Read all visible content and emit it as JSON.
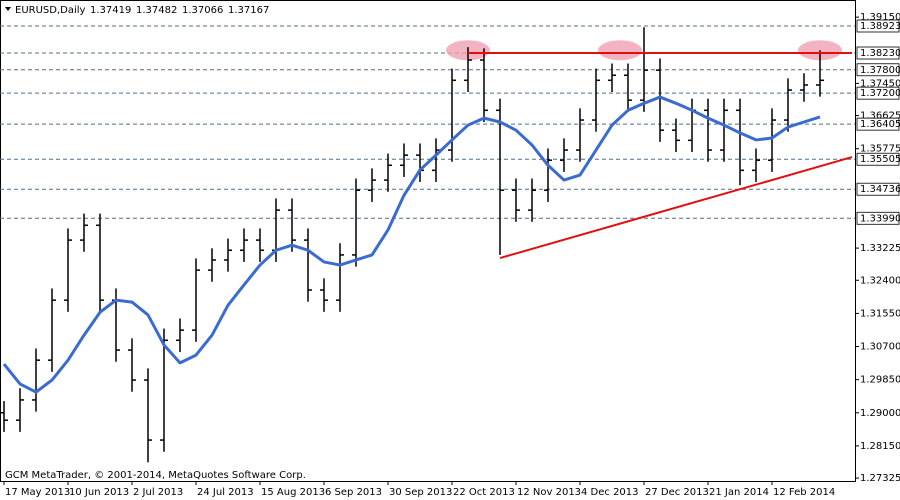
{
  "chart_data": {
    "type": "ohlc",
    "symbol": "EURUSD,Daily",
    "quote": [
      1.37419,
      1.37482,
      1.37066,
      1.37167
    ],
    "footer": "GCM MetaTrader, © 2001-2014, MetaQuotes Software Corp.",
    "categories": [
      "17 May 2013",
      null,
      null,
      null,
      "10 Jun 2013",
      null,
      null,
      null,
      "2 Jul 2013",
      null,
      null,
      null,
      "24 Jul 2013",
      null,
      null,
      null,
      "15 Aug 2013",
      null,
      null,
      null,
      "6 Sep 2013",
      null,
      null,
      null,
      "30 Sep 2013",
      null,
      null,
      null,
      "22 Oct 2013",
      null,
      null,
      null,
      "12 Nov 2013",
      null,
      null,
      null,
      "4 Dec 2013",
      null,
      null,
      null,
      "27 Dec 2013",
      null,
      null,
      null,
      "21 Jan 2014",
      null,
      null,
      null,
      "12 Feb 2014",
      null,
      null,
      null
    ],
    "open": [
      1.29,
      1.2881,
      1.2933,
      1.3035,
      1.3189,
      1.3343,
      1.3381,
      1.3189,
      1.3061,
      1.2984,
      1.283,
      1.3086,
      1.3112,
      1.3266,
      1.3292,
      1.3317,
      1.3343,
      1.3317,
      1.342,
      1.3343,
      1.3215,
      1.3189,
      1.3305,
      1.3471,
      1.3497,
      1.3535,
      1.3561,
      1.3522,
      1.3574,
      1.3753,
      1.3805,
      1.3676,
      1.3471,
      1.342,
      1.3471,
      1.3548,
      1.3574,
      1.3651,
      1.3753,
      1.3766,
      1.3702,
      1.3779,
      1.3625,
      1.3599,
      1.3676,
      1.3574,
      1.3676,
      1.3522,
      1.3548,
      1.3651,
      1.3728,
      1.3741
    ],
    "high": [
      1.293,
      1.2963,
      1.3065,
      1.3219,
      1.3373,
      1.3411,
      1.3411,
      1.3219,
      1.3091,
      1.3014,
      1.3116,
      1.3142,
      1.3296,
      1.3322,
      1.3347,
      1.3373,
      1.3373,
      1.345,
      1.345,
      1.3373,
      1.3245,
      1.3335,
      1.3501,
      1.3527,
      1.3565,
      1.3591,
      1.3591,
      1.3604,
      1.3783,
      1.3838,
      1.3835,
      1.3706,
      1.3501,
      1.3501,
      1.3578,
      1.3604,
      1.3681,
      1.3783,
      1.3796,
      1.3796,
      1.3889,
      1.3809,
      1.3655,
      1.3706,
      1.3706,
      1.3706,
      1.3706,
      1.3578,
      1.3681,
      1.3758,
      1.3771,
      1.383
    ],
    "low": [
      1.2851,
      1.2851,
      1.2903,
      1.3005,
      1.3159,
      1.3313,
      1.3159,
      1.3031,
      1.2954,
      1.2773,
      1.28,
      1.3056,
      1.3082,
      1.3236,
      1.3262,
      1.3287,
      1.3287,
      1.3287,
      1.3313,
      1.3185,
      1.3159,
      1.3159,
      1.3275,
      1.3441,
      1.3467,
      1.3505,
      1.3492,
      1.3492,
      1.3544,
      1.3723,
      1.3646,
      1.3305,
      1.339,
      1.339,
      1.3441,
      1.3518,
      1.3544,
      1.3621,
      1.3723,
      1.3672,
      1.3672,
      1.3595,
      1.3569,
      1.3569,
      1.3544,
      1.3544,
      1.3484,
      1.3492,
      1.3518,
      1.3621,
      1.3698,
      1.3711
    ],
    "close": [
      1.2881,
      1.2933,
      1.3035,
      1.3189,
      1.3343,
      1.3381,
      1.3189,
      1.3061,
      1.2984,
      1.283,
      1.3086,
      1.3112,
      1.3266,
      1.3292,
      1.3317,
      1.3343,
      1.3317,
      1.342,
      1.3343,
      1.3215,
      1.3189,
      1.3305,
      1.3471,
      1.3497,
      1.3535,
      1.3561,
      1.3522,
      1.3574,
      1.3753,
      1.3805,
      1.3676,
      1.3471,
      1.342,
      1.3471,
      1.3548,
      1.3574,
      1.3651,
      1.3753,
      1.3766,
      1.3702,
      1.3779,
      1.3625,
      1.3599,
      1.3676,
      1.3574,
      1.3676,
      1.3522,
      1.3548,
      1.3651,
      1.3728,
      1.3741,
      1.3753
    ],
    "bar_color": "#000000",
    "moving_average": {
      "color": "#3a6bd0",
      "values": [
        1.3025,
        1.2974,
        1.2953,
        1.2984,
        1.3035,
        1.3099,
        1.3158,
        1.3189,
        1.3184,
        1.3151,
        1.3074,
        1.3028,
        1.3048,
        1.3099,
        1.3176,
        1.3228,
        1.3279,
        1.3317,
        1.333,
        1.3317,
        1.3287,
        1.3279,
        1.3292,
        1.3305,
        1.3369,
        1.3458,
        1.3523,
        1.3561,
        1.36,
        1.3638,
        1.3656,
        1.3646,
        1.3625,
        1.3587,
        1.3535,
        1.3497,
        1.351,
        1.3574,
        1.3638,
        1.3676,
        1.3694,
        1.371,
        1.3694,
        1.3676,
        1.3656,
        1.3638,
        1.3618,
        1.36,
        1.3605,
        1.3633,
        1.3646,
        1.3659
      ]
    },
    "trendlines": [
      {
        "color": "#e01010",
        "x": [
          29,
          53
        ],
        "y": [
          1.3823,
          1.3823
        ]
      },
      {
        "color": "#e01010",
        "x": [
          31,
          53
        ],
        "y": [
          1.3297,
          1.3556
        ]
      }
    ],
    "highlights": {
      "color": "#f0a0b0",
      "x": [
        29,
        38.5,
        51
      ],
      "y": [
        1.383,
        1.383,
        1.383
      ]
    },
    "levels": [
      {
        "value": 1.38923,
        "label": "1.38923"
      },
      {
        "value": 1.3823,
        "label": "1.38230"
      },
      {
        "value": 1.378,
        "label": "1.37800"
      },
      {
        "value": 1.372,
        "label": "1.37200"
      },
      {
        "value": 1.36405,
        "label": "1.36405"
      },
      {
        "value": 1.35505,
        "label": "1.35505"
      },
      {
        "value": 1.34736,
        "label": "1.34736"
      },
      {
        "value": 1.3399,
        "label": "1.33990"
      }
    ],
    "level_color": "#4f6f8f",
    "ylim": [
      1.2725,
      1.3959
    ],
    "yticks": [
      {
        "value": 1.3915,
        "label": "1.39150"
      },
      {
        "value": 1.3745,
        "label": "1.37450"
      },
      {
        "value": 1.36625,
        "label": "1.36625"
      },
      {
        "value": 1.35775,
        "label": "1.35775"
      },
      {
        "value": 1.33225,
        "label": "1.33225"
      },
      {
        "value": 1.324,
        "label": "1.32400"
      },
      {
        "value": 1.3155,
        "label": "1.31550"
      },
      {
        "value": 1.307,
        "label": "1.30700"
      },
      {
        "value": 1.2985,
        "label": "1.29850"
      },
      {
        "value": 1.29,
        "label": "1.29000"
      },
      {
        "value": 1.2815,
        "label": "1.28150"
      },
      {
        "value": 1.27325,
        "label": "1.27325"
      }
    ]
  }
}
